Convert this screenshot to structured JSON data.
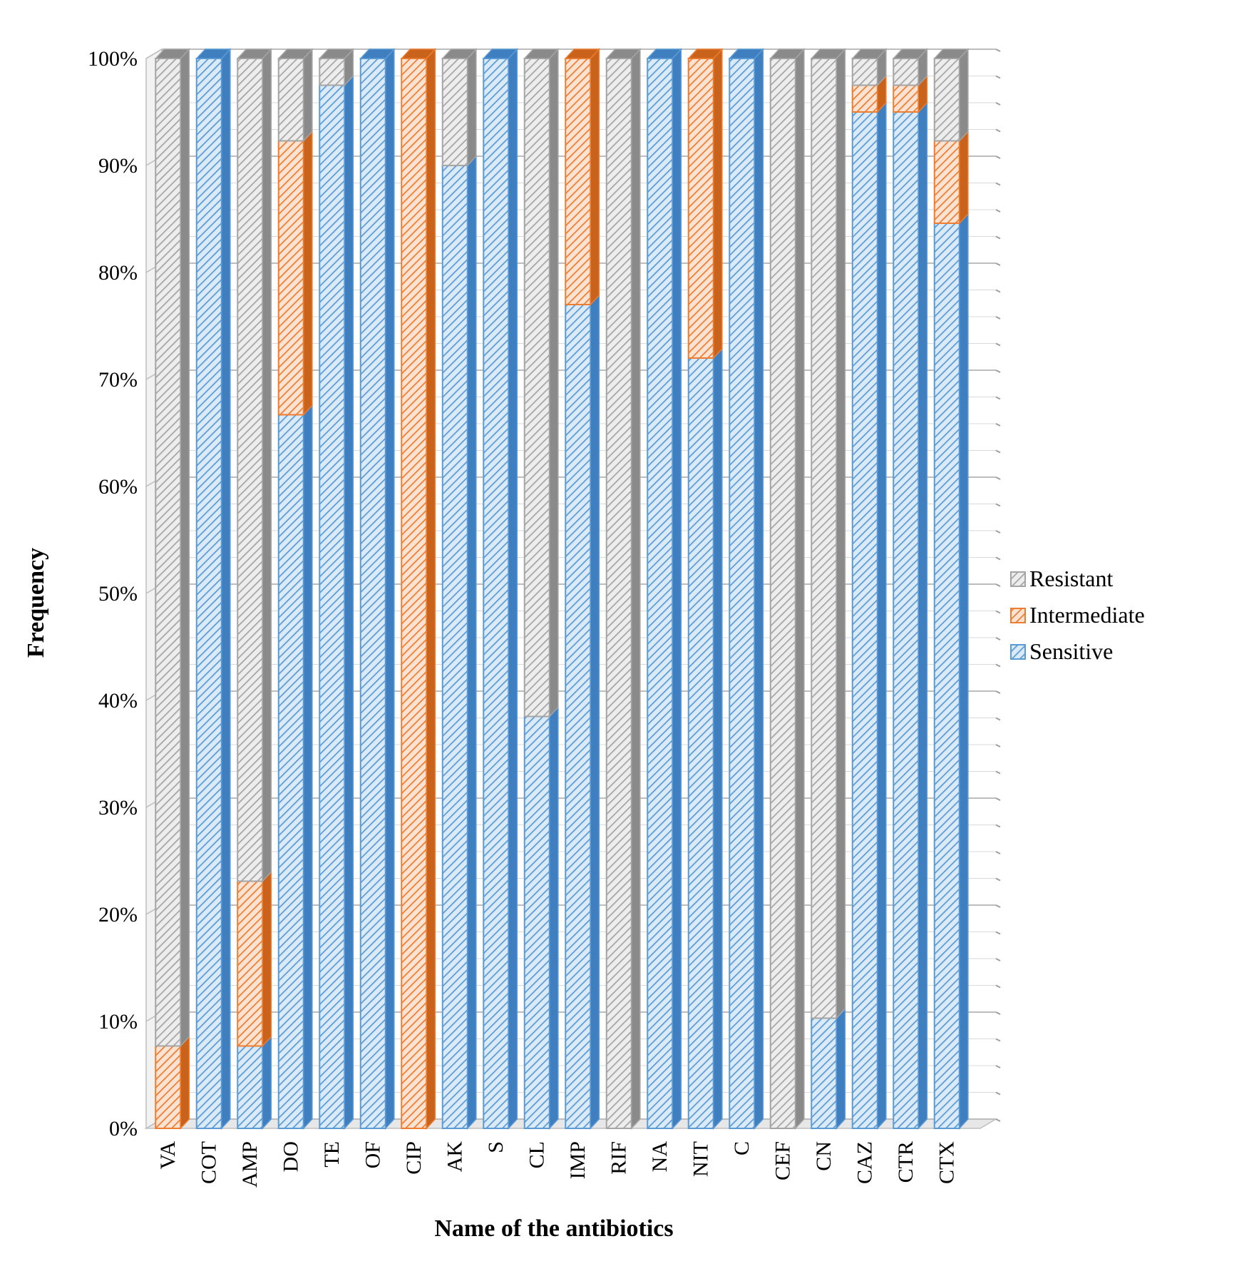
{
  "chart_data": {
    "type": "bar",
    "stacked": true,
    "percent_stacked": true,
    "three_d": true,
    "xlabel": "Name of the antibiotics",
    "ylabel": "Frequency",
    "ylim": [
      0,
      100
    ],
    "yticks": [
      "0%",
      "10%",
      "20%",
      "30%",
      "40%",
      "50%",
      "60%",
      "70%",
      "80%",
      "90%",
      "100%"
    ],
    "grid": true,
    "legend_position": "right",
    "categories": [
      "VA",
      "COT",
      "AMP",
      "DO",
      "TE",
      "OF",
      "CIP",
      "AK",
      "S",
      "CL",
      "IMP",
      "RIF",
      "NA",
      "NIT",
      "C",
      "CEF",
      "CN",
      "CAZ",
      "CTR",
      "CTX"
    ],
    "series": [
      {
        "name": "Sensitive",
        "color": "#5b9bd5",
        "values": [
          0,
          100,
          7.7,
          66.7,
          97.5,
          100,
          0,
          90,
          100,
          38.5,
          77,
          0,
          100,
          72,
          100,
          0,
          10.3,
          95,
          95,
          84.6
        ]
      },
      {
        "name": "Intermediate",
        "color": "#ed7d31",
        "values": [
          7.7,
          0,
          15.4,
          25.6,
          0,
          0,
          100,
          0,
          0,
          0,
          23,
          0,
          0,
          28,
          0,
          0,
          0,
          2.5,
          2.5,
          7.7
        ]
      },
      {
        "name": "Resistant",
        "color": "#a5a5a5",
        "values": [
          92.3,
          0,
          76.9,
          7.7,
          2.5,
          0,
          0,
          10,
          0,
          61.5,
          0,
          100,
          0,
          0,
          0,
          100,
          89.7,
          2.5,
          2.5,
          7.7
        ]
      }
    ],
    "legend_order": [
      "Resistant",
      "Intermediate",
      "Sensitive"
    ]
  }
}
